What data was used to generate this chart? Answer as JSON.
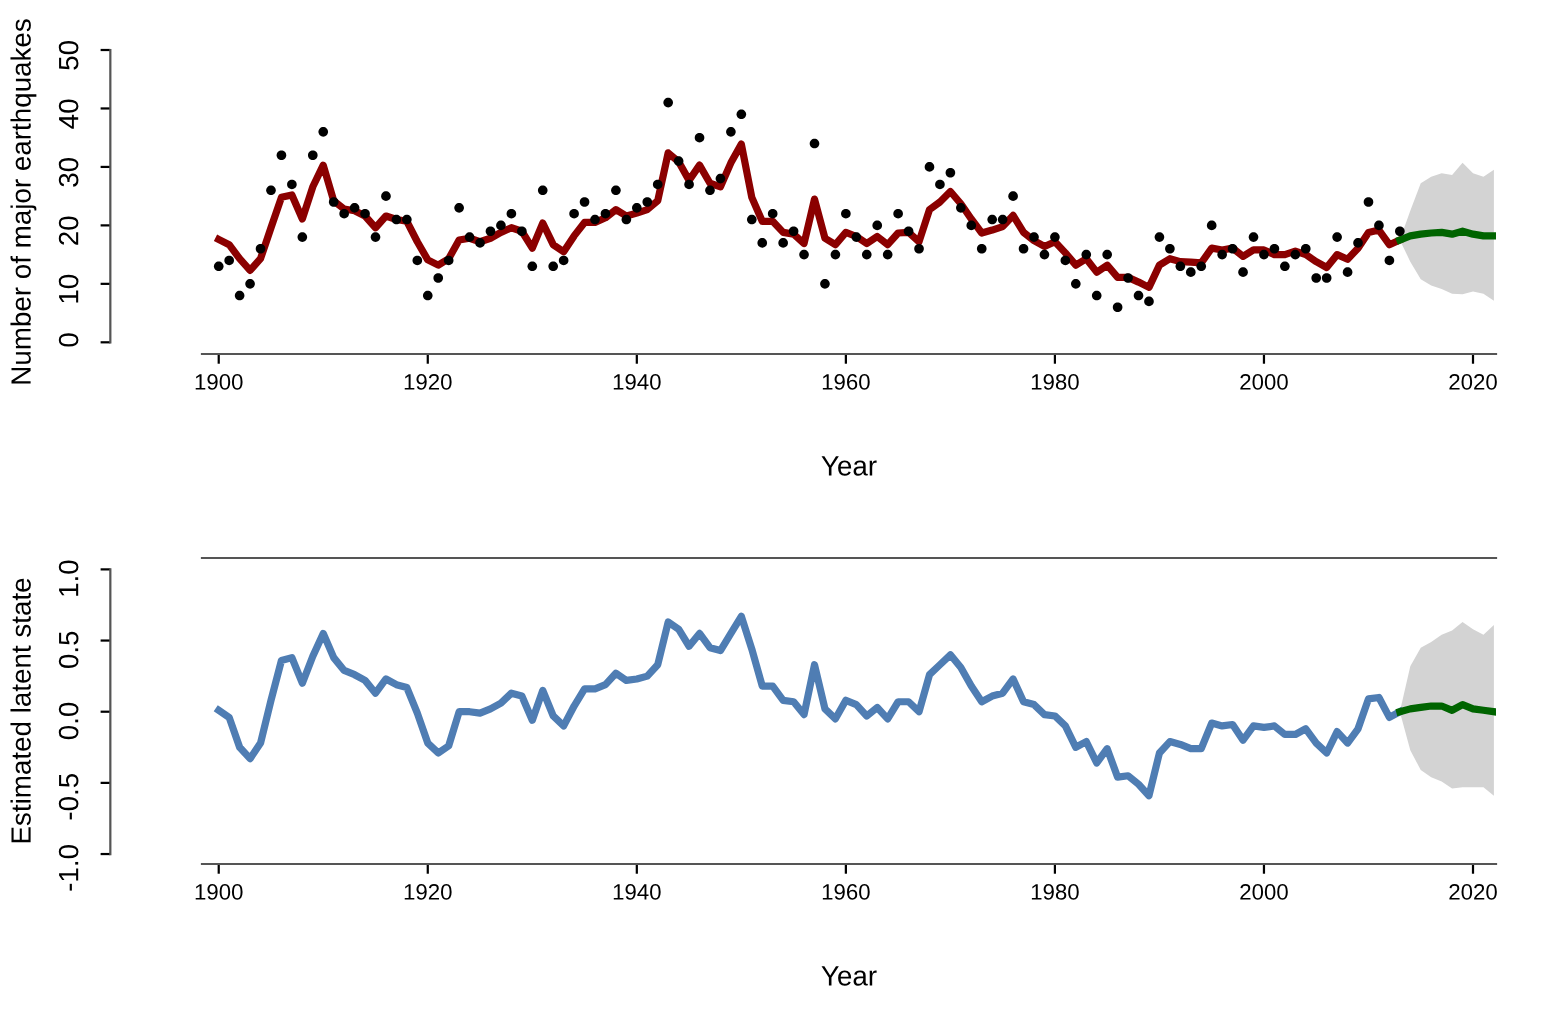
{
  "chart_data": [
    {
      "type": "line",
      "xlabel": "Year",
      "ylabel": "Number of major earthquakes",
      "xlim": [
        1898.4,
        2022.2
      ],
      "ylim": [
        -2,
        50
      ],
      "xticks": [
        1900,
        1920,
        1940,
        1960,
        1980,
        2000,
        2020
      ],
      "yticks": [
        0,
        10,
        20,
        30,
        40,
        50
      ],
      "grid": false,
      "legend": false,
      "series": [
        {
          "type": "scatter",
          "marker": "circle",
          "color": "#000000",
          "x": [
            1900,
            1901,
            1902,
            1903,
            1904,
            1905,
            1906,
            1907,
            1908,
            1909,
            1910,
            1911,
            1912,
            1913,
            1914,
            1915,
            1916,
            1917,
            1918,
            1919,
            1920,
            1921,
            1922,
            1923,
            1924,
            1925,
            1926,
            1927,
            1928,
            1929,
            1930,
            1931,
            1932,
            1933,
            1934,
            1935,
            1936,
            1937,
            1938,
            1939,
            1940,
            1941,
            1942,
            1943,
            1944,
            1945,
            1946,
            1947,
            1948,
            1949,
            1950,
            1951,
            1952,
            1953,
            1954,
            1955,
            1956,
            1957,
            1958,
            1959,
            1960,
            1961,
            1962,
            1963,
            1964,
            1965,
            1966,
            1967,
            1968,
            1969,
            1970,
            1971,
            1972,
            1973,
            1974,
            1975,
            1976,
            1977,
            1978,
            1979,
            1980,
            1981,
            1982,
            1983,
            1984,
            1985,
            1986,
            1987,
            1988,
            1989,
            1990,
            1991,
            1992,
            1993,
            1994,
            1995,
            1996,
            1997,
            1998,
            1999,
            2000,
            2001,
            2002,
            2003,
            2004,
            2005,
            2006,
            2007,
            2008,
            2009,
            2010,
            2011,
            2012,
            2013
          ],
          "values": [
            13,
            14,
            8,
            10,
            16,
            26,
            32,
            27,
            18,
            32,
            36,
            24,
            22,
            23,
            22,
            18,
            25,
            21,
            21,
            14,
            8,
            11,
            14,
            23,
            18,
            17,
            19,
            20,
            22,
            19,
            13,
            26,
            13,
            14,
            22,
            24,
            21,
            22,
            26,
            21,
            23,
            24,
            27,
            41,
            31,
            27,
            35,
            26,
            28,
            36,
            39,
            21,
            17,
            22,
            17,
            19,
            15,
            34,
            10,
            15,
            22,
            18,
            15,
            20,
            15,
            22,
            19,
            16,
            30,
            27,
            29,
            23,
            20,
            16,
            21,
            21,
            25,
            16,
            18,
            15,
            18,
            14,
            10,
            15,
            8,
            15,
            6,
            11,
            8,
            7,
            18,
            16,
            13,
            12,
            13,
            20,
            15,
            16,
            12,
            18,
            15,
            16,
            13,
            15,
            16,
            11,
            11,
            18,
            12,
            17,
            24,
            20,
            14,
            19
          ]
        },
        {
          "color": "#8b0000",
          "x": [
            1900,
            1901,
            1902,
            1903,
            1904,
            1905,
            1906,
            1907,
            1908,
            1909,
            1910,
            1911,
            1912,
            1913,
            1914,
            1915,
            1916,
            1917,
            1918,
            1919,
            1920,
            1921,
            1922,
            1923,
            1924,
            1925,
            1926,
            1927,
            1928,
            1929,
            1930,
            1931,
            1932,
            1933,
            1934,
            1935,
            1936,
            1937,
            1938,
            1939,
            1940,
            1941,
            1942,
            1943,
            1944,
            1945,
            1946,
            1947,
            1948,
            1949,
            1950,
            1951,
            1952,
            1953,
            1954,
            1955,
            1956,
            1957,
            1958,
            1959,
            1960,
            1961,
            1962,
            1963,
            1964,
            1965,
            1966,
            1967,
            1968,
            1969,
            1970,
            1971,
            1972,
            1973,
            1974,
            1975,
            1976,
            1977,
            1978,
            1979,
            1980,
            1981,
            1982,
            1983,
            1984,
            1985,
            1986,
            1987,
            1988,
            1989,
            1990,
            1991,
            1992,
            1993,
            1994,
            1995,
            1996,
            1997,
            1998,
            1999,
            2000,
            2001,
            2002,
            2003,
            2004,
            2005,
            2006,
            2007,
            2008,
            2009,
            2010,
            2011,
            2012,
            2013
          ],
          "values": [
            17.6,
            16.7,
            14.3,
            12.3,
            14.3,
            19.6,
            24.8,
            25.2,
            21.1,
            26.6,
            30.3,
            24.2,
            22.8,
            22.5,
            21.6,
            19.6,
            21.6,
            21.0,
            20.7,
            17.2,
            14.1,
            13.2,
            14.3,
            17.5,
            17.8,
            17.2,
            17.8,
            18.8,
            19.6,
            19.0,
            16.1,
            20.4,
            16.7,
            15.5,
            18.2,
            20.5,
            20.5,
            21.3,
            22.7,
            21.6,
            22.1,
            22.7,
            24.2,
            32.4,
            30.9,
            27.7,
            30.3,
            27.2,
            26.6,
            30.7,
            33.9,
            24.8,
            20.7,
            20.7,
            18.8,
            18.5,
            16.9,
            24.5,
            17.8,
            16.7,
            18.8,
            18.1,
            16.9,
            18.1,
            16.7,
            18.7,
            18.8,
            17.2,
            22.7,
            24.0,
            25.8,
            23.7,
            21.1,
            18.7,
            19.2,
            19.8,
            21.7,
            18.8,
            17.4,
            16.4,
            17.2,
            15.3,
            13.2,
            14.3,
            12.0,
            13.2,
            11.1,
            11.1,
            10.3,
            9.4,
            13.2,
            14.3,
            13.8,
            13.7,
            13.6,
            16.1,
            15.8,
            16.1,
            14.7,
            15.8,
            15.8,
            15.0,
            15.0,
            15.6,
            15.0,
            13.8,
            12.8,
            15.0,
            14.2,
            16.1,
            18.8,
            19.2,
            16.7,
            17.5
          ]
        },
        {
          "color": "#006400",
          "x": [
            2013,
            2014,
            2015,
            2016,
            2017,
            2018,
            2019,
            2020,
            2021,
            2022
          ],
          "values": [
            17.5,
            18.2,
            18.5,
            18.7,
            18.8,
            18.5,
            19.0,
            18.5,
            18.2,
            18.2
          ],
          "lower": [
            17.5,
            13.8,
            10.8,
            9.7,
            9.1,
            8.3,
            8.2,
            8.7,
            8.3,
            7.1
          ],
          "upper": [
            17.5,
            22.5,
            27.2,
            28.3,
            28.9,
            28.6,
            30.7,
            28.9,
            28.3,
            29.5
          ]
        }
      ]
    },
    {
      "type": "line",
      "xlabel": "Year",
      "ylabel": "Estimated latent state",
      "xlim": [
        1898.4,
        2022.2
      ],
      "ylim": [
        -1.07,
        1.08
      ],
      "xticks": [
        1900,
        1920,
        1940,
        1960,
        1980,
        2000,
        2020
      ],
      "yticks": [
        {
          "value": -1,
          "label": "-1.0"
        },
        {
          "value": -0.5,
          "label": "-0.5"
        },
        {
          "value": 0,
          "label": "0.0"
        },
        {
          "value": 0.5,
          "label": "0.5"
        },
        {
          "value": 1,
          "label": "1.0"
        }
      ],
      "grid": false,
      "legend": false,
      "series": [
        {
          "color": "#4f7db3",
          "x": [
            1900,
            1901,
            1902,
            1903,
            1904,
            1905,
            1906,
            1907,
            1908,
            1909,
            1910,
            1911,
            1912,
            1913,
            1914,
            1915,
            1916,
            1917,
            1918,
            1919,
            1920,
            1921,
            1922,
            1923,
            1924,
            1925,
            1926,
            1927,
            1928,
            1929,
            1930,
            1931,
            1932,
            1933,
            1934,
            1935,
            1936,
            1937,
            1938,
            1939,
            1940,
            1941,
            1942,
            1943,
            1944,
            1945,
            1946,
            1947,
            1948,
            1949,
            1950,
            1951,
            1952,
            1953,
            1954,
            1955,
            1956,
            1957,
            1958,
            1959,
            1960,
            1961,
            1962,
            1963,
            1964,
            1965,
            1966,
            1967,
            1968,
            1969,
            1970,
            1971,
            1972,
            1973,
            1974,
            1975,
            1976,
            1977,
            1978,
            1979,
            1980,
            1981,
            1982,
            1983,
            1984,
            1985,
            1986,
            1987,
            1988,
            1989,
            1990,
            1991,
            1992,
            1993,
            1994,
            1995,
            1996,
            1997,
            1998,
            1999,
            2000,
            2001,
            2002,
            2003,
            2004,
            2005,
            2006,
            2007,
            2008,
            2009,
            2010,
            2011,
            2012,
            2013
          ],
          "values": [
            0.01,
            -0.04,
            -0.25,
            -0.33,
            -0.22,
            0.08,
            0.36,
            0.38,
            0.2,
            0.39,
            0.55,
            0.38,
            0.29,
            0.26,
            0.22,
            0.13,
            0.23,
            0.19,
            0.17,
            -0.01,
            -0.22,
            -0.29,
            -0.24,
            0.0,
            0.0,
            -0.01,
            0.02,
            0.06,
            0.13,
            0.11,
            -0.06,
            0.15,
            -0.03,
            -0.1,
            0.04,
            0.16,
            0.16,
            0.19,
            0.27,
            0.22,
            0.23,
            0.25,
            0.33,
            0.63,
            0.58,
            0.46,
            0.55,
            0.45,
            0.43,
            0.55,
            0.67,
            0.44,
            0.18,
            0.18,
            0.08,
            0.07,
            -0.02,
            0.33,
            0.02,
            -0.05,
            0.08,
            0.05,
            -0.03,
            0.03,
            -0.05,
            0.07,
            0.07,
            0.0,
            0.26,
            0.33,
            0.4,
            0.31,
            0.18,
            0.07,
            0.11,
            0.13,
            0.23,
            0.07,
            0.05,
            -0.02,
            -0.03,
            -0.1,
            -0.25,
            -0.21,
            -0.36,
            -0.26,
            -0.46,
            -0.45,
            -0.51,
            -0.59,
            -0.29,
            -0.21,
            -0.23,
            -0.26,
            -0.26,
            -0.08,
            -0.1,
            -0.09,
            -0.2,
            -0.1,
            -0.11,
            -0.1,
            -0.16,
            -0.16,
            -0.12,
            -0.22,
            -0.29,
            -0.14,
            -0.22,
            -0.12,
            0.09,
            0.1,
            -0.04,
            0.0
          ]
        },
        {
          "color": "#006400",
          "x": [
            2013,
            2014,
            2015,
            2016,
            2017,
            2018,
            2019,
            2020,
            2021,
            2022
          ],
          "values": [
            0.0,
            0.02,
            0.03,
            0.04,
            0.04,
            0.01,
            0.05,
            0.02,
            0.01,
            0.0
          ],
          "lower": [
            0.0,
            -0.27,
            -0.41,
            -0.46,
            -0.49,
            -0.54,
            -0.53,
            -0.53,
            -0.53,
            -0.59
          ],
          "upper": [
            0.0,
            0.32,
            0.45,
            0.49,
            0.54,
            0.57,
            0.63,
            0.58,
            0.54,
            0.61
          ]
        }
      ]
    }
  ]
}
